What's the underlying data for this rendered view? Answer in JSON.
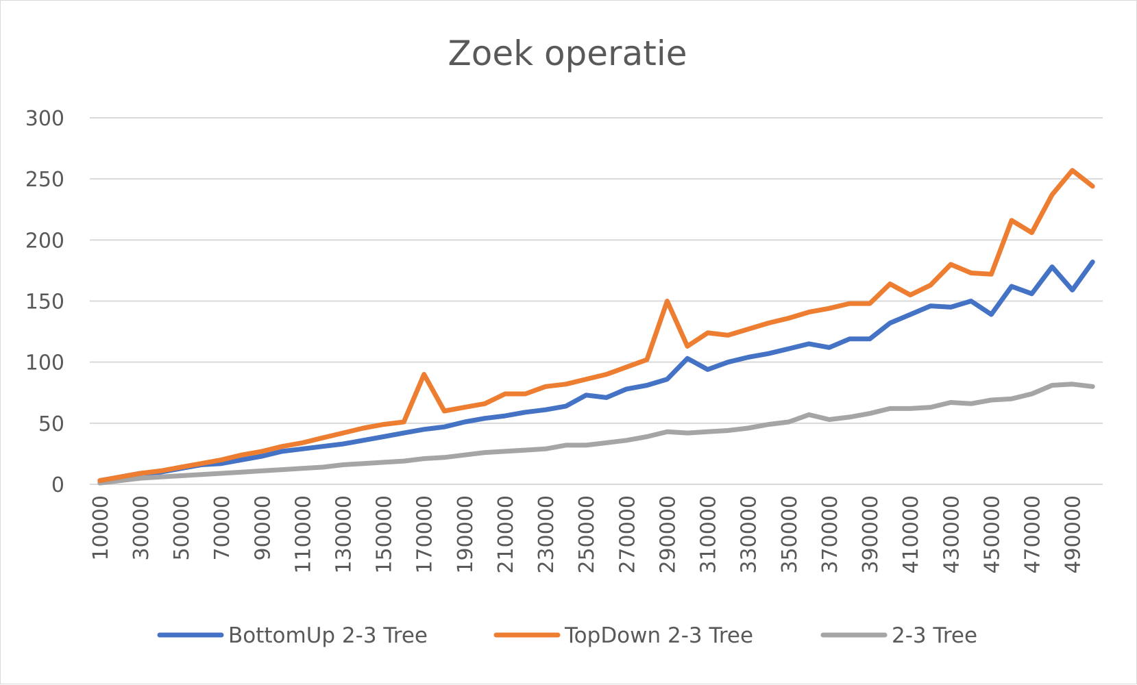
{
  "chart_data": {
    "type": "line",
    "title": "Zoek operatie",
    "xlabel": "",
    "ylabel": "",
    "ylim": [
      0,
      300
    ],
    "yticks": [
      "0",
      "50",
      "100",
      "150",
      "200",
      "250",
      "300"
    ],
    "grid": true,
    "legend_position": "bottom",
    "x": [
      10000,
      20000,
      30000,
      40000,
      50000,
      60000,
      70000,
      80000,
      90000,
      100000,
      110000,
      120000,
      130000,
      140000,
      150000,
      160000,
      170000,
      180000,
      190000,
      200000,
      210000,
      220000,
      230000,
      240000,
      250000,
      260000,
      270000,
      280000,
      290000,
      300000,
      310000,
      320000,
      330000,
      340000,
      350000,
      360000,
      370000,
      380000,
      390000,
      400000,
      410000,
      420000,
      430000,
      440000,
      450000,
      460000,
      470000,
      480000,
      490000,
      500000
    ],
    "xtick_labels": [
      "10000",
      "30000",
      "50000",
      "70000",
      "90000",
      "110000",
      "130000",
      "150000",
      "170000",
      "190000",
      "210000",
      "230000",
      "250000",
      "270000",
      "290000",
      "310000",
      "330000",
      "350000",
      "370000",
      "390000",
      "410000",
      "430000",
      "450000",
      "470000",
      "490000"
    ],
    "series": [
      {
        "name": "BottomUp 2-3 Tree",
        "color": "#4472c4",
        "values": [
          3,
          6,
          9,
          10,
          13,
          16,
          17,
          20,
          23,
          27,
          29,
          31,
          33,
          36,
          39,
          42,
          45,
          47,
          51,
          54,
          56,
          59,
          61,
          64,
          73,
          71,
          78,
          81,
          86,
          103,
          94,
          100,
          104,
          107,
          111,
          115,
          112,
          119,
          119,
          132,
          139,
          146,
          145,
          150,
          139,
          162,
          156,
          178,
          159,
          182
        ]
      },
      {
        "name": "TopDown 2-3 Tree",
        "color": "#ed7d31",
        "values": [
          3,
          6,
          9,
          11,
          14,
          17,
          20,
          24,
          27,
          31,
          34,
          38,
          42,
          46,
          49,
          51,
          90,
          60,
          63,
          66,
          74,
          74,
          80,
          82,
          86,
          90,
          96,
          102,
          150,
          113,
          124,
          122,
          127,
          132,
          136,
          141,
          144,
          148,
          148,
          164,
          155,
          163,
          180,
          173,
          172,
          216,
          206,
          237,
          257,
          244
        ]
      },
      {
        "name": "2-3 Tree",
        "color": "#a5a5a5",
        "values": [
          1,
          3,
          5,
          6,
          7,
          8,
          9,
          10,
          11,
          12,
          13,
          14,
          16,
          17,
          18,
          19,
          21,
          22,
          24,
          26,
          27,
          28,
          29,
          32,
          32,
          34,
          36,
          39,
          43,
          42,
          43,
          44,
          46,
          49,
          51,
          57,
          53,
          55,
          58,
          62,
          62,
          63,
          67,
          66,
          69,
          70,
          74,
          81,
          82,
          80
        ]
      }
    ]
  }
}
